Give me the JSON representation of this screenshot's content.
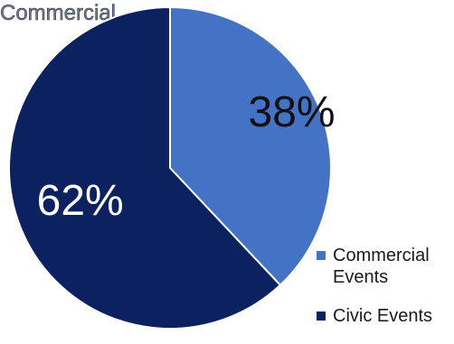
{
  "chart_data": {
    "type": "pie",
    "title": "Commercial",
    "series": [
      {
        "name": "Commercial Events",
        "value": 38,
        "label": "38%",
        "color": "#4472C4"
      },
      {
        "name": "Civic Events",
        "value": 62,
        "label": "62%",
        "color": "#0B2160"
      }
    ],
    "legend_position": "bottom-right"
  }
}
